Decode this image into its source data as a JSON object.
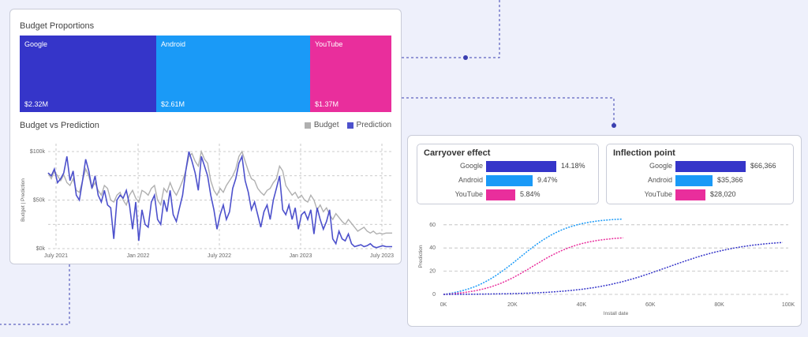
{
  "colors": {
    "google": "#3535c9",
    "android": "#1a9af7",
    "youtube": "#e92e9c",
    "budget": "#b0b0b0",
    "prediction": "#4d51cc"
  },
  "budget_proportions": {
    "title": "Budget Proportions",
    "items": [
      {
        "name": "Google",
        "value": "$2.32M",
        "share": 2.32
      },
      {
        "name": "Android",
        "value": "$2.61M",
        "share": 2.61
      },
      {
        "name": "YouTube",
        "value": "$1.37M",
        "share": 1.37
      }
    ]
  },
  "budget_vs_prediction": {
    "title": "Budget vs Prediction",
    "legend": {
      "budget": "Budget",
      "prediction": "Prediction"
    },
    "ylabel": "Budget | Prediction",
    "yticks": [
      "$100k",
      "$50k",
      "$0k"
    ],
    "xticks": [
      "July 2021",
      "Jan 2022",
      "July 2022",
      "Jan 2023",
      "July 2023"
    ]
  },
  "carryover": {
    "title": "Carryover effect",
    "rows": [
      {
        "label": "Google",
        "value": "14.18%",
        "num": 14.18
      },
      {
        "label": "Android",
        "value": "9.47%",
        "num": 9.47
      },
      {
        "label": "YouTube",
        "value": "5.84%",
        "num": 5.84
      }
    ]
  },
  "inflection": {
    "title": "Inflection point",
    "rows": [
      {
        "label": "Google",
        "value": "$66,366",
        "num": 66366
      },
      {
        "label": "Android",
        "value": "$35,366",
        "num": 35366
      },
      {
        "label": "YouTube",
        "value": "$28,020",
        "num": 28020
      }
    ]
  },
  "response_chart": {
    "ylabel": "Prediction",
    "xlabel": "Install date",
    "yticks": [
      "60",
      "40",
      "20",
      "0"
    ],
    "xticks": [
      "0K",
      "20K",
      "40K",
      "60K",
      "80K",
      "100K"
    ]
  },
  "chart_data": [
    {
      "type": "bar",
      "title": "Budget Proportions",
      "categories": [
        "Google",
        "Android",
        "YouTube"
      ],
      "values": [
        2.32,
        2.61,
        1.37
      ]
    },
    {
      "type": "line",
      "title": "Budget vs Prediction",
      "ylabel": "Budget | Prediction",
      "ylim": [
        0,
        100
      ],
      "x_ticks": [
        "July 2021",
        "Jan 2022",
        "July 2022",
        "Jan 2023",
        "July 2023"
      ],
      "series": [
        {
          "name": "Budget",
          "values": [
            78,
            72,
            80,
            75,
            70,
            76,
            68,
            65,
            72,
            60,
            58,
            70,
            82,
            75,
            62,
            68,
            60,
            55,
            65,
            62,
            50,
            48,
            55,
            58,
            50,
            45,
            55,
            60,
            52,
            48,
            60,
            58,
            55,
            62,
            65,
            50,
            45,
            62,
            58,
            68,
            60,
            55,
            62,
            70,
            80,
            95,
            98,
            90,
            85,
            100,
            92,
            88,
            70,
            60,
            55,
            62,
            58,
            65,
            70,
            75,
            82,
            95,
            100,
            90,
            80,
            72,
            70,
            62,
            58,
            55,
            60,
            62,
            68,
            72,
            85,
            80,
            65,
            60,
            55,
            58,
            52,
            55,
            50,
            48,
            55,
            50,
            40,
            45,
            38,
            42,
            35,
            30,
            36,
            32,
            28,
            25,
            30,
            26,
            22,
            18,
            20,
            22,
            18,
            16,
            18,
            15,
            16,
            15,
            16,
            16,
            16
          ]
        },
        {
          "name": "Prediction",
          "values": [
            78,
            75,
            82,
            68,
            72,
            78,
            95,
            70,
            80,
            55,
            50,
            70,
            92,
            80,
            62,
            75,
            55,
            48,
            60,
            45,
            42,
            10,
            50,
            55,
            52,
            60,
            45,
            20,
            48,
            8,
            40,
            25,
            22,
            48,
            55,
            30,
            25,
            50,
            38,
            60,
            35,
            28,
            42,
            55,
            80,
            100,
            90,
            78,
            60,
            95,
            85,
            75,
            55,
            40,
            20,
            35,
            45,
            30,
            38,
            62,
            72,
            88,
            95,
            70,
            58,
            40,
            48,
            35,
            22,
            38,
            45,
            30,
            50,
            62,
            75,
            40,
            35,
            45,
            30,
            42,
            20,
            35,
            38,
            30,
            40,
            15,
            42,
            30,
            20,
            28,
            40,
            10,
            5,
            18,
            10,
            8,
            15,
            5,
            2,
            3,
            4,
            2,
            3,
            5,
            2,
            1,
            2,
            3,
            2,
            2,
            2
          ]
        }
      ]
    },
    {
      "type": "bar",
      "title": "Carryover effect",
      "categories": [
        "Google",
        "Android",
        "YouTube"
      ],
      "values": [
        14.18,
        9.47,
        5.84
      ]
    },
    {
      "type": "bar",
      "title": "Inflection point",
      "categories": [
        "Google",
        "Android",
        "YouTube"
      ],
      "values": [
        66366,
        35366,
        28020
      ]
    },
    {
      "type": "line",
      "xlabel": "Install date",
      "ylabel": "Prediction",
      "xlim": [
        0,
        100000
      ],
      "ylim": [
        0,
        70
      ],
      "series": [
        {
          "name": "Android",
          "x_end": 52000,
          "y_max": 66,
          "midpoint": 22000,
          "steepness": 0.00014
        },
        {
          "name": "YouTube",
          "x_end": 53000,
          "y_max": 50,
          "midpoint": 26000,
          "steepness": 0.00014
        },
        {
          "name": "Google",
          "x_end": 100000,
          "y_max": 47,
          "midpoint": 65000,
          "steepness": 9e-05
        }
      ]
    }
  ]
}
